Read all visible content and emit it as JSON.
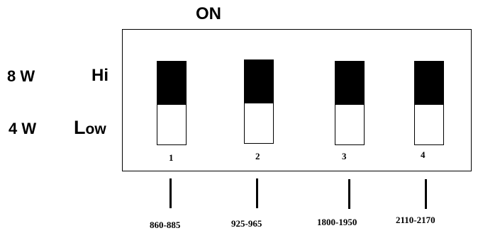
{
  "header": {
    "on_label": "ON"
  },
  "rows": {
    "power_high": "8 W",
    "power_low": "4 W",
    "level_high": "Hi",
    "level_low_initial": "L",
    "level_low_rest": "ow"
  },
  "switches": [
    {
      "number": "1",
      "band": "860-885",
      "position": "Hi"
    },
    {
      "number": "2",
      "band": "925-965",
      "position": "Hi"
    },
    {
      "number": "3",
      "band": "1800-1950",
      "position": "Hi"
    },
    {
      "number": "4",
      "band": "2110-2170",
      "position": "Hi"
    }
  ],
  "colors": {
    "knob": "#000000",
    "body": "#ffffff",
    "outline": "#000000"
  }
}
